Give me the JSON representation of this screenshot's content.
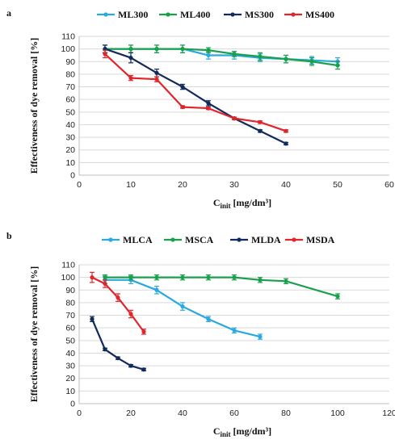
{
  "chart_data": [
    {
      "panel": "a",
      "type": "line",
      "xlabel": "C",
      "xlabel_sub": "init",
      "xlabel_unit": " [mg/dm³]",
      "ylabel": "Effectiveness of dye removal [%]",
      "xlim": [
        0,
        60
      ],
      "ylim": [
        0,
        110
      ],
      "xticks": [
        0,
        10,
        20,
        30,
        40,
        50,
        60
      ],
      "yticks": [
        0,
        10,
        20,
        30,
        40,
        50,
        60,
        70,
        80,
        90,
        100,
        110
      ],
      "grid": true,
      "legend": "top",
      "series": [
        {
          "name": "ML300",
          "color": "#29a9e0",
          "x": [
            5,
            10,
            15,
            20,
            25,
            30,
            35,
            40,
            45,
            50
          ],
          "y": [
            100,
            100,
            100,
            100,
            95,
            95,
            93,
            92,
            91,
            90
          ],
          "err": [
            3,
            3,
            3,
            3,
            3,
            3,
            3,
            3,
            3,
            3
          ]
        },
        {
          "name": "ML400",
          "color": "#19a04b",
          "x": [
            5,
            10,
            15,
            20,
            25,
            30,
            35,
            40,
            45,
            50
          ],
          "y": [
            100,
            100,
            100,
            100,
            99,
            96,
            94,
            92,
            90,
            87
          ],
          "err": [
            3,
            3,
            3,
            3,
            2,
            2,
            3,
            3,
            3,
            3
          ]
        },
        {
          "name": "MS300",
          "color": "#112a5c",
          "x": [
            5,
            10,
            15,
            20,
            25,
            30,
            35,
            40
          ],
          "y": [
            100,
            93,
            81,
            70,
            57,
            45,
            35,
            25
          ],
          "err": [
            3,
            4,
            3,
            2,
            2,
            1,
            1,
            1
          ]
        },
        {
          "name": "MS400",
          "color": "#e0262b",
          "x": [
            5,
            10,
            15,
            20,
            25,
            30,
            35,
            40
          ],
          "y": [
            96,
            77,
            76,
            54,
            53,
            45,
            42,
            35
          ],
          "err": [
            3,
            2,
            2,
            1,
            1,
            1,
            1,
            1
          ]
        }
      ]
    },
    {
      "panel": "b",
      "type": "line",
      "xlabel": "C",
      "xlabel_sub": "init",
      "xlabel_unit": " [mg/dm³]",
      "ylabel": "Effectiveness of dye removal [%]",
      "xlim": [
        0,
        120
      ],
      "ylim": [
        0,
        110
      ],
      "xticks": [
        0,
        20,
        40,
        60,
        80,
        100,
        120
      ],
      "yticks": [
        0,
        10,
        20,
        30,
        40,
        50,
        60,
        70,
        80,
        90,
        100,
        110
      ],
      "grid": true,
      "legend": "top",
      "series": [
        {
          "name": "MLCA",
          "color": "#29a9e0",
          "x": [
            10,
            20,
            30,
            40,
            50,
            60,
            70
          ],
          "y": [
            98,
            98,
            90,
            77,
            67,
            58,
            53
          ],
          "err": [
            3,
            3,
            3,
            3,
            2,
            2,
            2
          ]
        },
        {
          "name": "MSCA",
          "color": "#19a04b",
          "x": [
            10,
            20,
            30,
            40,
            50,
            60,
            70,
            80,
            100
          ],
          "y": [
            100,
            100,
            100,
            100,
            100,
            100,
            98,
            97,
            85
          ],
          "err": [
            2,
            2,
            2,
            2,
            2,
            2,
            2,
            2,
            2
          ]
        },
        {
          "name": "MLDA",
          "color": "#112a5c",
          "x": [
            5,
            10,
            15,
            20,
            25
          ],
          "y": [
            67,
            43,
            36,
            30,
            27
          ],
          "err": [
            2,
            1,
            1,
            1,
            1
          ]
        },
        {
          "name": "MSDA",
          "color": "#e0262b",
          "x": [
            5,
            10,
            15,
            20,
            25
          ],
          "y": [
            100,
            95,
            84,
            71,
            57
          ],
          "err": [
            4,
            3,
            3,
            3,
            2
          ]
        }
      ]
    }
  ]
}
